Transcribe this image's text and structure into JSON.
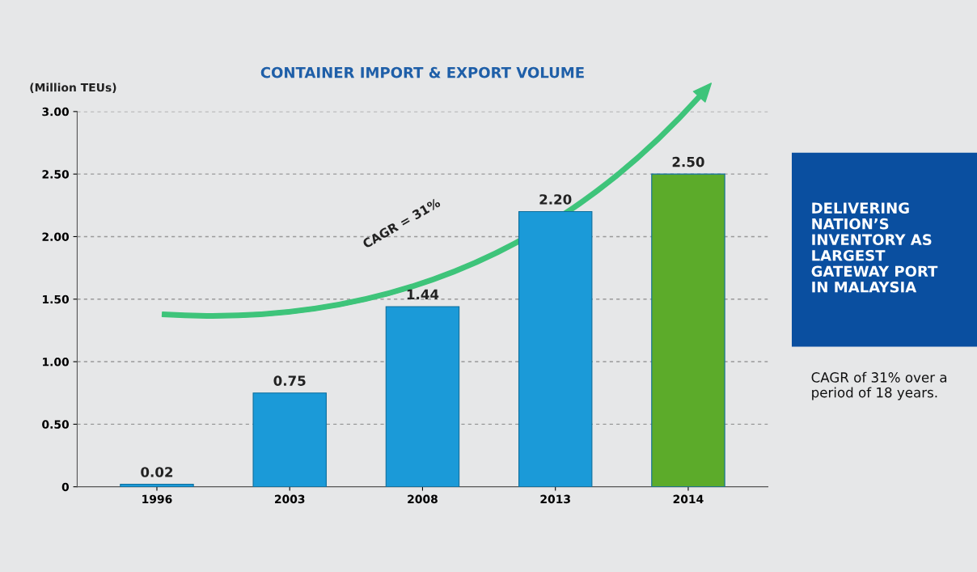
{
  "chart_data": {
    "type": "bar",
    "title": "CONTAINER IMPORT & EXPORT VOLUME",
    "ylabel": "(Million TEUs)",
    "categories": [
      "1996",
      "2003",
      "2008",
      "2013",
      "2014"
    ],
    "values": [
      0.02,
      0.75,
      1.44,
      2.2,
      2.5
    ],
    "colors": [
      "#1b9ad8",
      "#1b9ad8",
      "#1b9ad8",
      "#1b9ad8",
      "#5cab2a"
    ],
    "value_labels": [
      "0.02",
      "0.75",
      "1.44",
      "2.20",
      "2.50"
    ],
    "ylim": [
      0,
      3
    ],
    "yticks": [
      {
        "value": 0,
        "label": "0"
      },
      {
        "value": 0.5,
        "label": "0.50"
      },
      {
        "value": 1,
        "label": "1.00"
      },
      {
        "value": 1.5,
        "label": "1.50"
      },
      {
        "value": 2,
        "label": "2.00"
      },
      {
        "value": 2.5,
        "label": "2.50"
      },
      {
        "value": 3,
        "label": "3.00"
      }
    ],
    "grid": "y",
    "annotations": [
      "CAGR = 31%",
      "DELIVERING\nNATION’S\nINVENTORY AS\nLARGEST\nGATEWAY PORT\nIN MALAYSIA",
      "CAGR of 31% over a\nperiod of 18 years."
    ]
  }
}
